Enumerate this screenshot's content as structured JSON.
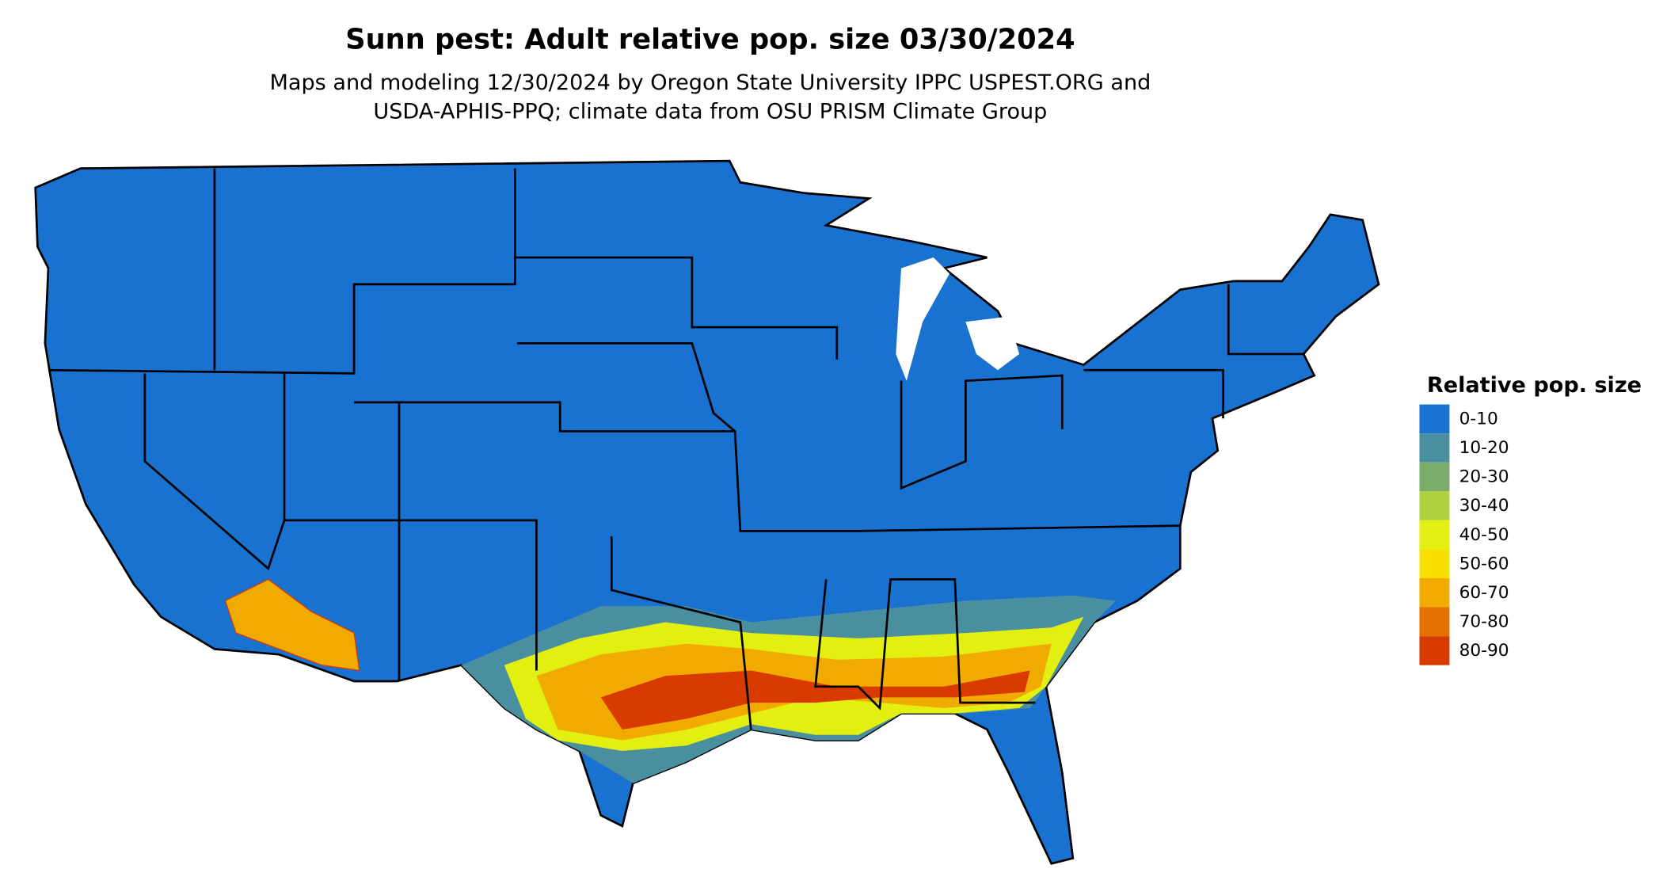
{
  "title": "Sunn pest: Adult relative pop. size 03/30/2024",
  "subtitle": [
    "Maps and modeling 12/30/2024 by Oregon State University IPPC USPEST.ORG and",
    "USDA-APHIS-PPQ; climate data from OSU PRISM Climate Group"
  ],
  "legend": {
    "title": "Relative pop. size",
    "items": [
      {
        "label": "0-10",
        "color": "#1a72d0"
      },
      {
        "label": "10-20",
        "color": "#4a8fa0"
      },
      {
        "label": "20-30",
        "color": "#7cac6c"
      },
      {
        "label": "30-40",
        "color": "#b0d03c"
      },
      {
        "label": "40-50",
        "color": "#e2ef10"
      },
      {
        "label": "50-60",
        "color": "#f7e000"
      },
      {
        "label": "60-70",
        "color": "#f0aa00"
      },
      {
        "label": "70-80",
        "color": "#e47000"
      },
      {
        "label": "80-90",
        "color": "#d83a00"
      }
    ]
  }
}
